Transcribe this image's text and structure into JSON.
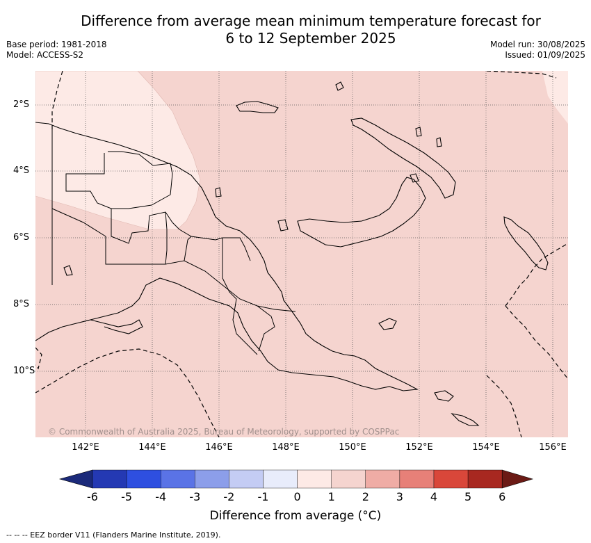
{
  "title_line1": "Difference from average mean minimum temperature forecast for",
  "title_line2": "6 to 12 September 2025",
  "meta": {
    "base_period": "Base period: 1981-2018",
    "model": "Model: ACCESS-S2",
    "model_run": "Model run: 30/08/2025",
    "issued": "Issued: 01/09/2025"
  },
  "map": {
    "lon_ticks": [
      "142°E",
      "144°E",
      "146°E",
      "148°E",
      "150°E",
      "152°E",
      "154°E",
      "156°E"
    ],
    "lat_ticks": [
      "2°S",
      "4°S",
      "6°S",
      "8°S",
      "10°S"
    ],
    "copyright": "© Commonwealth of Australia 2025, Bureau of Meteorology, supported by COSPPac",
    "colors": {
      "anomaly_0_1": "#fdeae6",
      "anomaly_1_2": "#f5d4cf",
      "land_outline": "#000000",
      "graticule": "#555555"
    }
  },
  "colorbar": {
    "ticks": [
      "-6",
      "-5",
      "-4",
      "-3",
      "-2",
      "-1",
      "0",
      "1",
      "2",
      "3",
      "4",
      "5",
      "6"
    ],
    "colors": [
      "#1b2a7a",
      "#2439b3",
      "#2e4fe0",
      "#5a73e6",
      "#8c9eea",
      "#c4ccf4",
      "#e8ecfb",
      "#fdeae6",
      "#f5d4cf",
      "#efaca5",
      "#e78078",
      "#d9473a",
      "#a82820",
      "#6b1a15"
    ],
    "label": "Difference from average (°C)"
  },
  "footnote": "--  --  -- EEZ border V11 (Flanders Marine Institute, 2019)."
}
